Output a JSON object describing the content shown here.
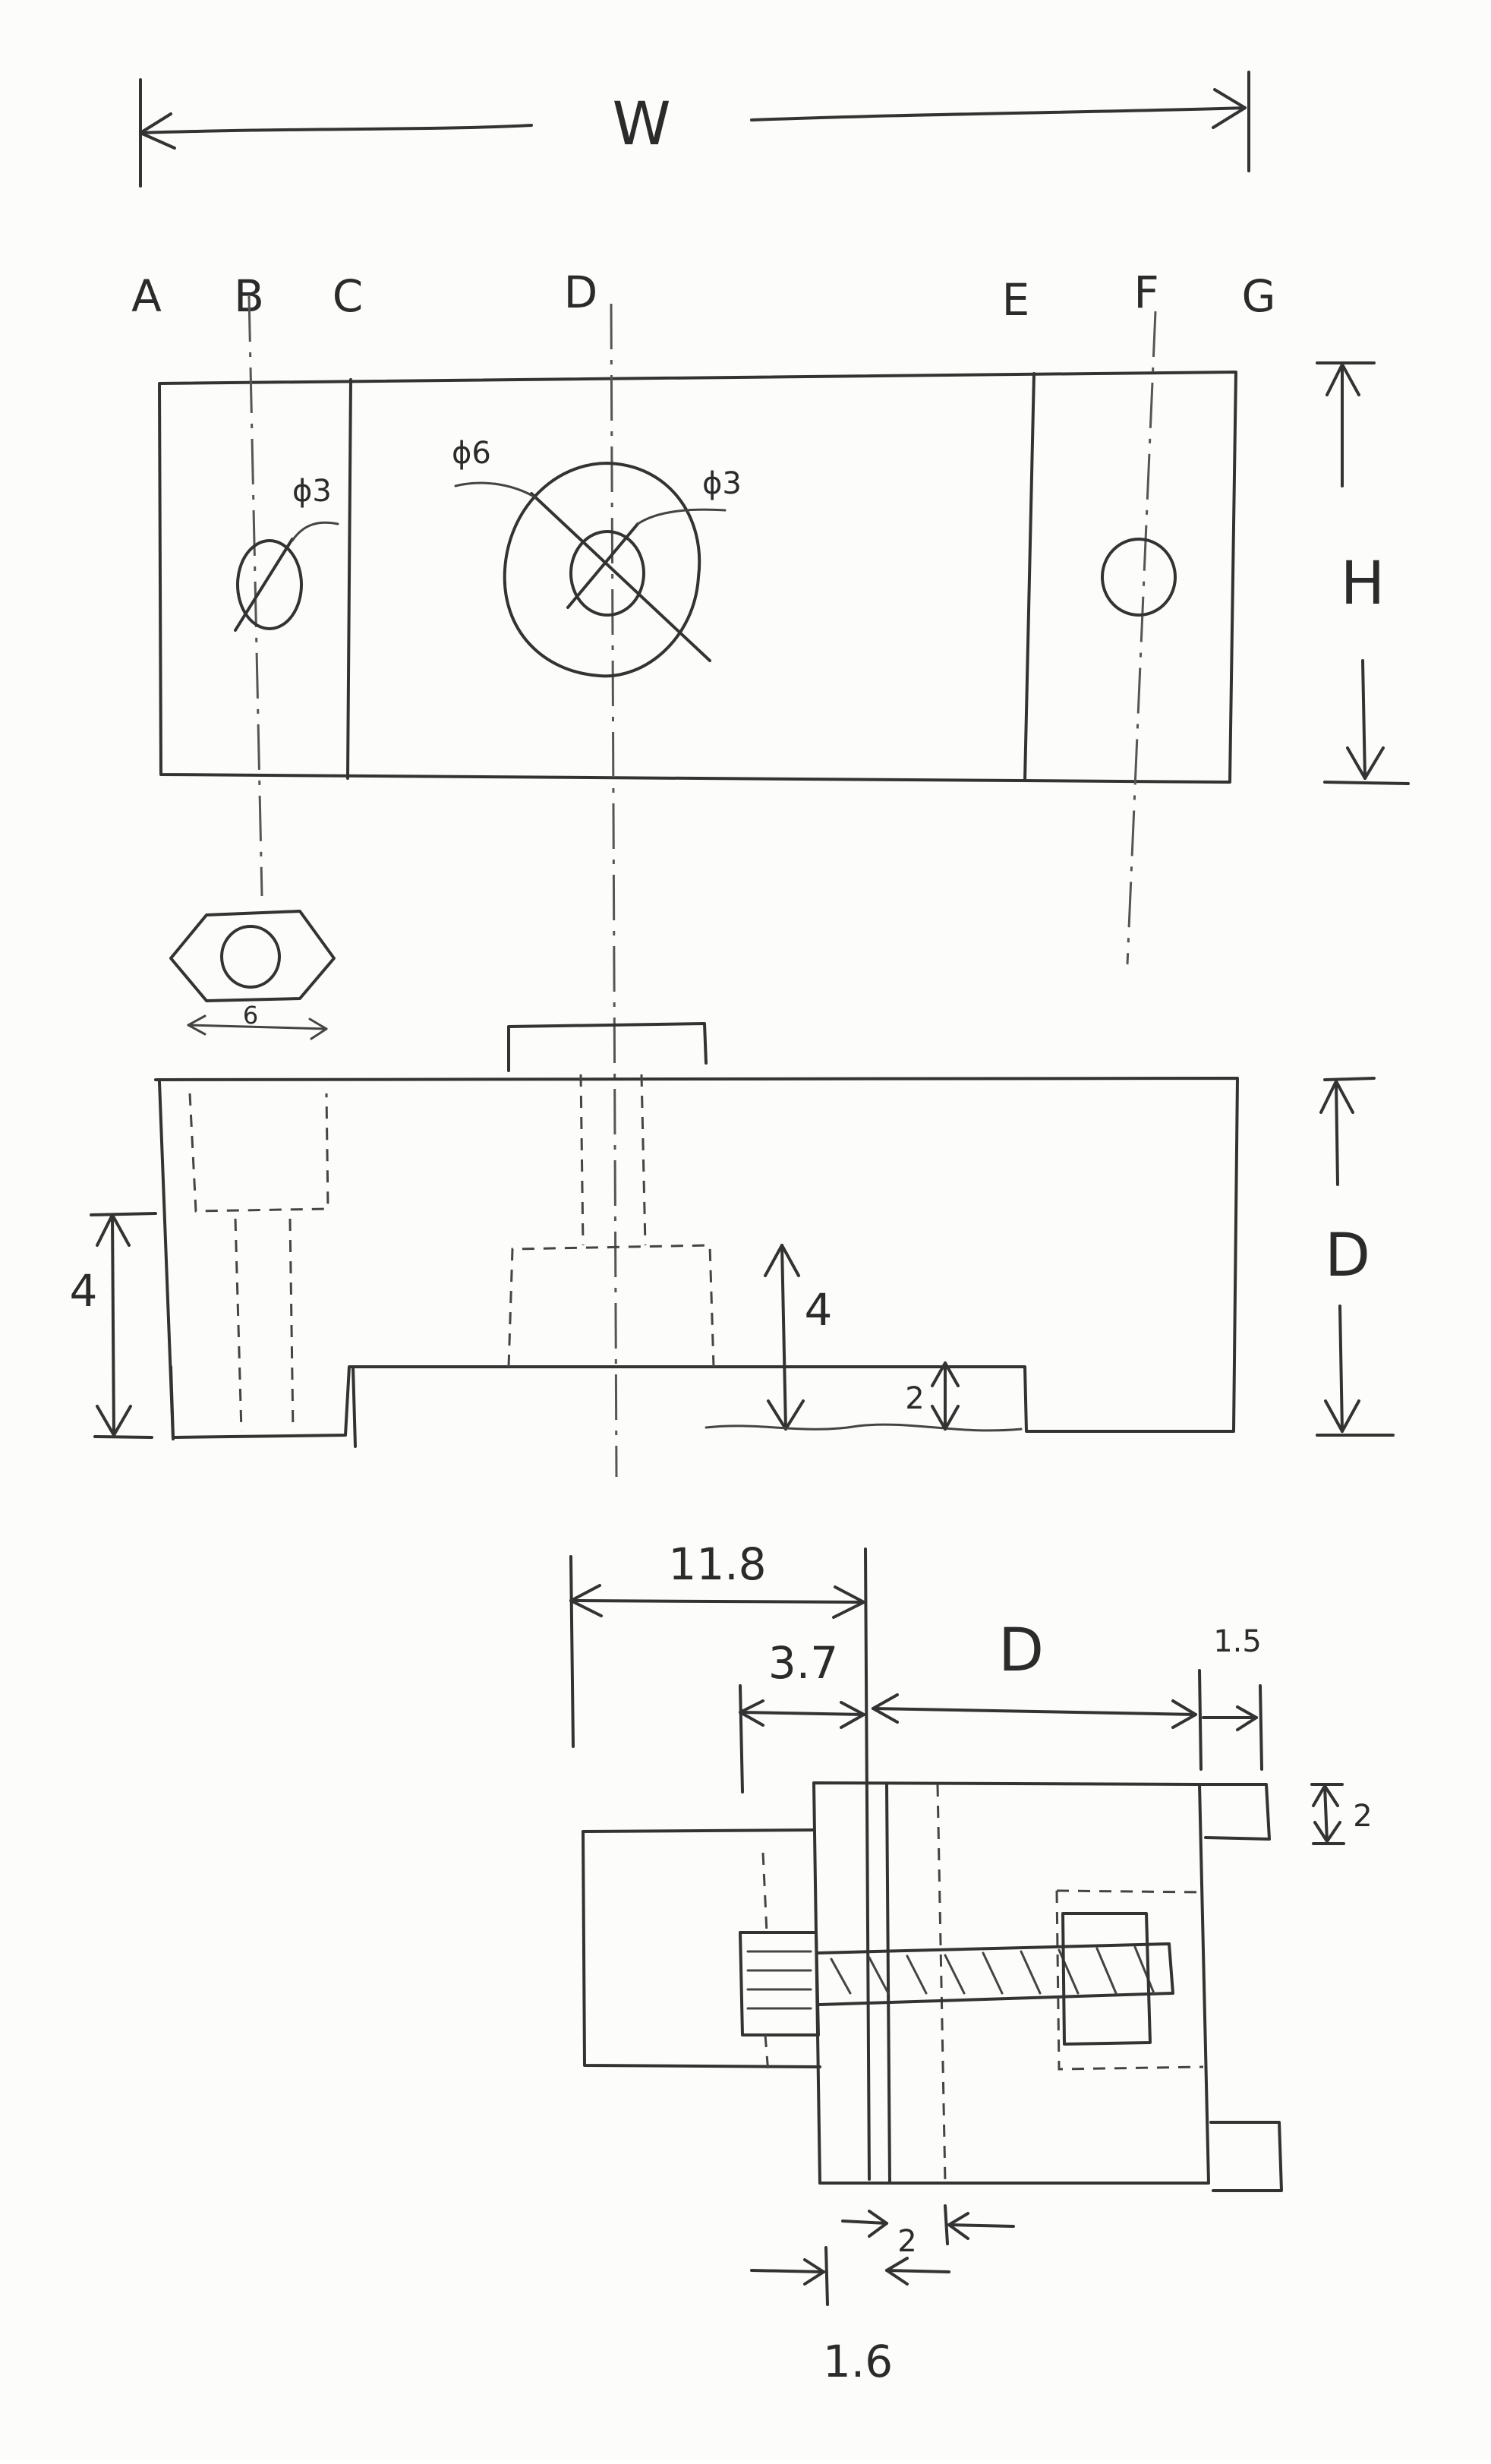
{
  "labels": {
    "width": "W",
    "height": "H",
    "depth": "D",
    "A": "A",
    "B": "B",
    "C": "C",
    "D": "D",
    "E": "E",
    "F": "F",
    "G": "G"
  },
  "top_view": {
    "phi_small_left": "ϕ3",
    "phi_large": "ϕ6",
    "phi_small_center": "ϕ3"
  },
  "front_view": {
    "hex_width": "6",
    "left_step": "4",
    "center_step": "4",
    "right_step": "2"
  },
  "detail_view": {
    "dim_total": "11.8",
    "dim_inner": "3.7",
    "dim_depth": "D",
    "dim_right": "1.5",
    "dim_tab": "2",
    "dim_gap": "2",
    "dim_plate": "1.6"
  }
}
